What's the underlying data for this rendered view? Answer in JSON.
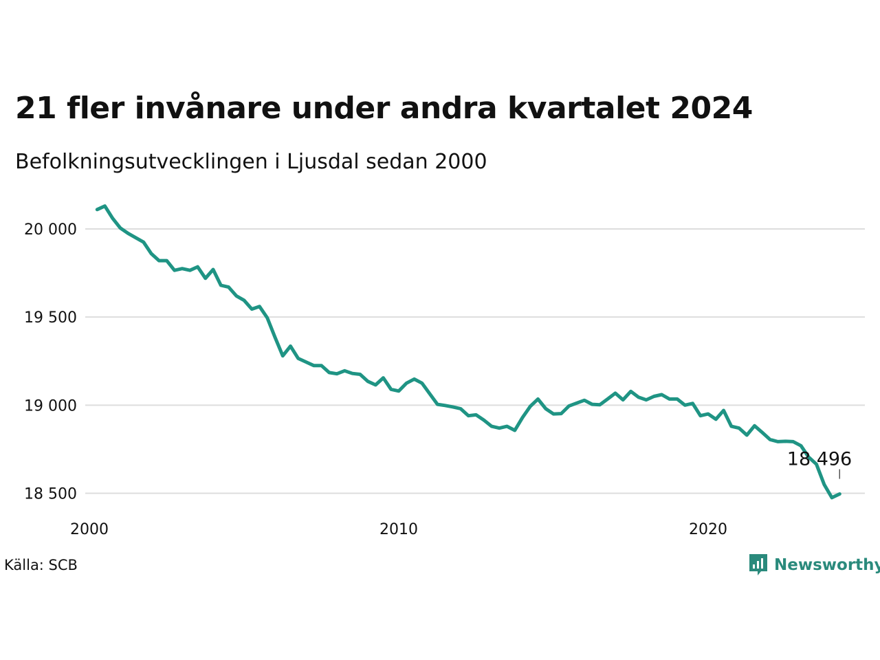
{
  "title": "21 fler invånare under andra kvartalet 2024",
  "subtitle": "Befolkningsutvecklingen i Ljusdal sedan 2000",
  "source": "Källa: SCB",
  "brand": {
    "name": "Newsworthy",
    "icon": "bar-chart-bubble-icon",
    "color": "#2a8a7c"
  },
  "colors": {
    "line": "#1f9484",
    "grid": "#dddddd",
    "text": "#111111"
  },
  "chart_data": {
    "type": "line",
    "title": "21 fler invånare under andra kvartalet 2024",
    "subtitle": "Befolkningsutvecklingen i Ljusdal sedan 2000",
    "xlabel": "",
    "ylabel": "",
    "x_start": 2000.25,
    "x_step": 0.25,
    "xlim": [
      2000,
      2025
    ],
    "ylim": [
      18370,
      20180
    ],
    "x_ticks": [
      2000,
      2010,
      2020
    ],
    "x_tick_labels": [
      "2000",
      "2010",
      "2020"
    ],
    "y_ticks": [
      18500,
      19000,
      19500,
      20000
    ],
    "y_tick_labels": [
      "18 500",
      "19 000",
      "19 500",
      "20 000"
    ],
    "grid": "horizontal",
    "annotation": {
      "text": "18 496",
      "value": 18496
    },
    "series": [
      {
        "name": "",
        "values": [
          20110,
          20130,
          20060,
          20005,
          19975,
          19950,
          19925,
          19860,
          19820,
          19820,
          19765,
          19775,
          19765,
          19785,
          19720,
          19770,
          19680,
          19670,
          19620,
          19595,
          19545,
          19560,
          19495,
          19385,
          19280,
          19335,
          19265,
          19245,
          19225,
          19225,
          19185,
          19178,
          19195,
          19180,
          19175,
          19135,
          19115,
          19155,
          19090,
          19080,
          19125,
          19148,
          19125,
          19065,
          19005,
          18998,
          18990,
          18980,
          18940,
          18945,
          18915,
          18880,
          18870,
          18880,
          18857,
          18930,
          18993,
          19035,
          18980,
          18950,
          18952,
          18995,
          19012,
          19028,
          19005,
          19002,
          19035,
          19068,
          19030,
          19078,
          19045,
          19030,
          19050,
          19060,
          19035,
          19035,
          19000,
          19010,
          18940,
          18950,
          18920,
          18970,
          18880,
          18870,
          18830,
          18883,
          18845,
          18805,
          18793,
          18795,
          18793,
          18770,
          18705,
          18665,
          18550,
          18475,
          18496
        ]
      }
    ]
  }
}
